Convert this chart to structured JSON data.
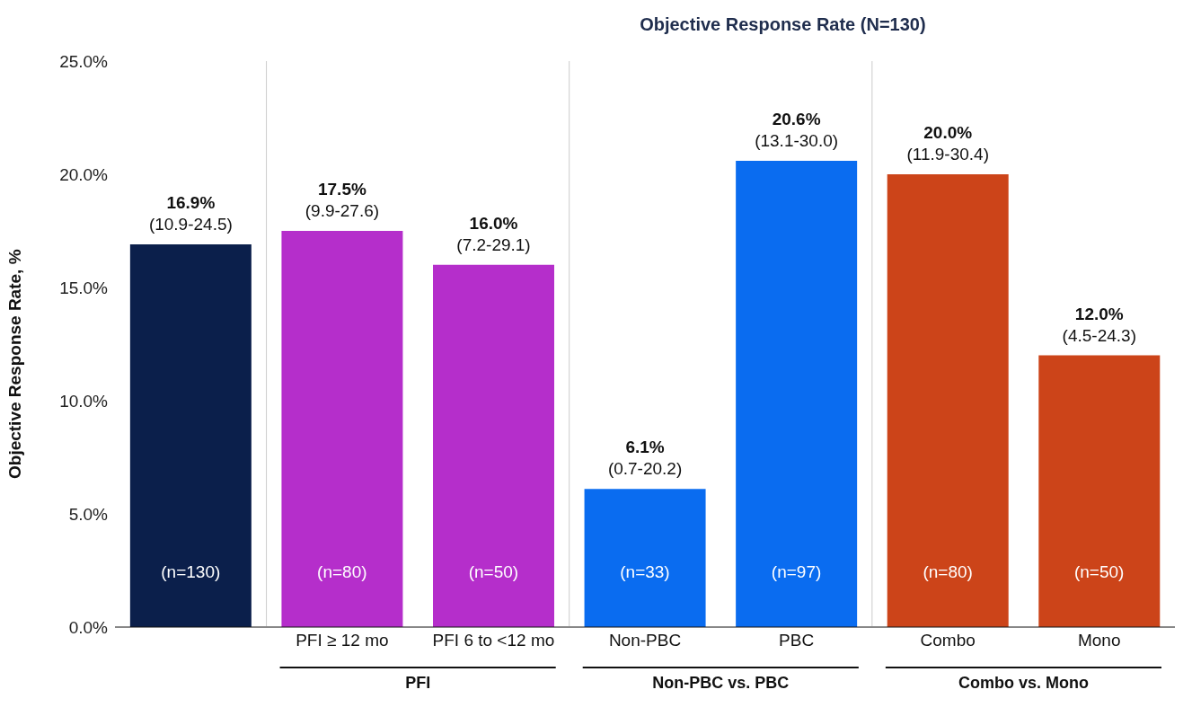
{
  "chart_data": {
    "type": "bar",
    "title": "Objective Response Rate (N=130)",
    "ylabel": "Objective Response Rate, %",
    "categories": [
      null,
      "PFI ≥ 12 mo",
      "PFI 6 to <12 mo",
      "Non-PBC",
      "PBC",
      "Combo",
      "Mono"
    ],
    "values": [
      16.9,
      17.5,
      16.0,
      6.1,
      20.6,
      20.0,
      12.0
    ],
    "colors": [
      "#0b1f4b",
      "#b52ecb",
      "#b52ecb",
      "#0a6cf0",
      "#0a6cf0",
      "#cc4419",
      "#cc4419"
    ],
    "value_labels": [
      "16.9%\n(10.9-24.5)",
      "17.5%\n(9.9-27.6)",
      "16.0%\n(7.2-29.1)",
      "6.1%\n(0.7-20.2)",
      "20.6%\n(13.1-30.0)",
      "20.0%\n(11.9-30.4)",
      "12.0%\n(4.5-24.3)"
    ],
    "annotations": [
      "(n=130)",
      "(n=80)",
      "(n=50)",
      "(n=33)",
      "(n=97)",
      "(n=80)",
      "(n=50)",
      "PFI",
      "Non-PBC vs. PBC",
      "Combo vs. Mono"
    ],
    "ylim": [
      0,
      25
    ],
    "yticks": [
      {
        "value": 0,
        "label": "0.0%"
      },
      {
        "value": 5,
        "label": "5.0%"
      },
      {
        "value": 10,
        "label": "10.0%"
      },
      {
        "value": 15,
        "label": "15.0%"
      },
      {
        "value": 20,
        "label": "20.0%"
      },
      {
        "value": 25,
        "label": "25.0%"
      }
    ],
    "grid": false,
    "legend": false
  }
}
